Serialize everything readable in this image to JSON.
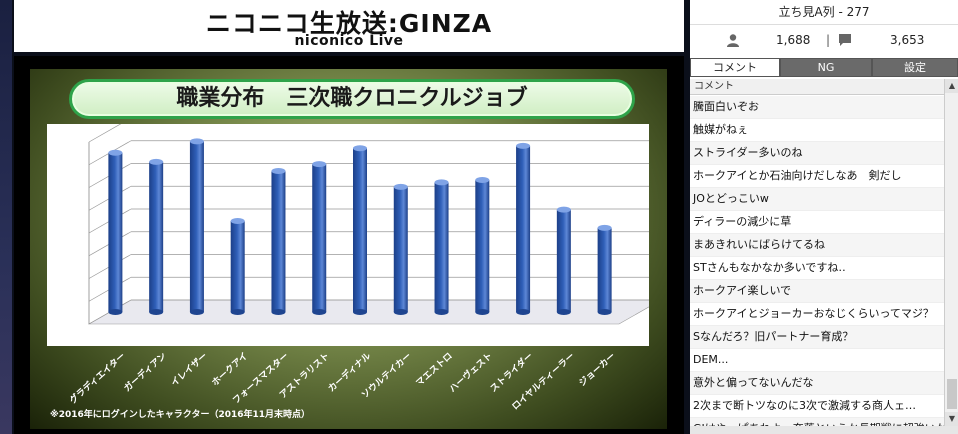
{
  "logo": {
    "main": "ニコニコ生放送:GINZA",
    "sub": "niconico Live"
  },
  "slide": {
    "title": "職業分布　三次職クロニクルジョブ",
    "footnote": "※2016年にログインしたキャラクター（2016年11月末時点）"
  },
  "chart_data": {
    "type": "bar",
    "title": "職業分布　三次職クロニクルジョブ",
    "categories": [
      "グラディエイター",
      "ガーディアン",
      "イレイザー",
      "ホークアイ",
      "フォースマスター",
      "アストラリスト",
      "カーディナル",
      "ソウルテイカー",
      "マエストロ",
      "ハーヴェスト",
      "ストライダー",
      "ロイヤルティーラー",
      "ジョーカー"
    ],
    "values": [
      7.0,
      6.6,
      7.5,
      4.0,
      6.2,
      6.5,
      7.2,
      5.5,
      5.7,
      5.8,
      7.3,
      4.5,
      3.7
    ],
    "ylim": [
      0,
      8
    ],
    "grid": true,
    "color": "#2f5fb8"
  },
  "panel": {
    "stream_title": "立ち見A列 - 277",
    "viewers": "1,688",
    "comments_count": "3,653",
    "tabs": [
      "コメント",
      "NG",
      "設定"
    ],
    "col_header": "コメント",
    "comments": [
      "騰面白いぞお",
      "触媒がねぇ",
      "ストライダー多いのね",
      "ホークアイとか石油向けだしなあ　剣だし",
      "JOとどっこいw",
      "ディラーの減少に草",
      "まあきれいにばらけてるね",
      "STさんもなかなか多いですね‥",
      "ホークアイ楽しいで",
      "ホークアイとジョーカーおなじくらいってマジ？",
      "Sなんだろ？旧パートナー育成？",
      "DEM...",
      "意外と偏ってないんだな",
      "2次まで断トツなのに3次で激減する商人ェ…",
      "GIはやっぱあれよ、奈落というか長期戦に超強いかや"
    ]
  }
}
